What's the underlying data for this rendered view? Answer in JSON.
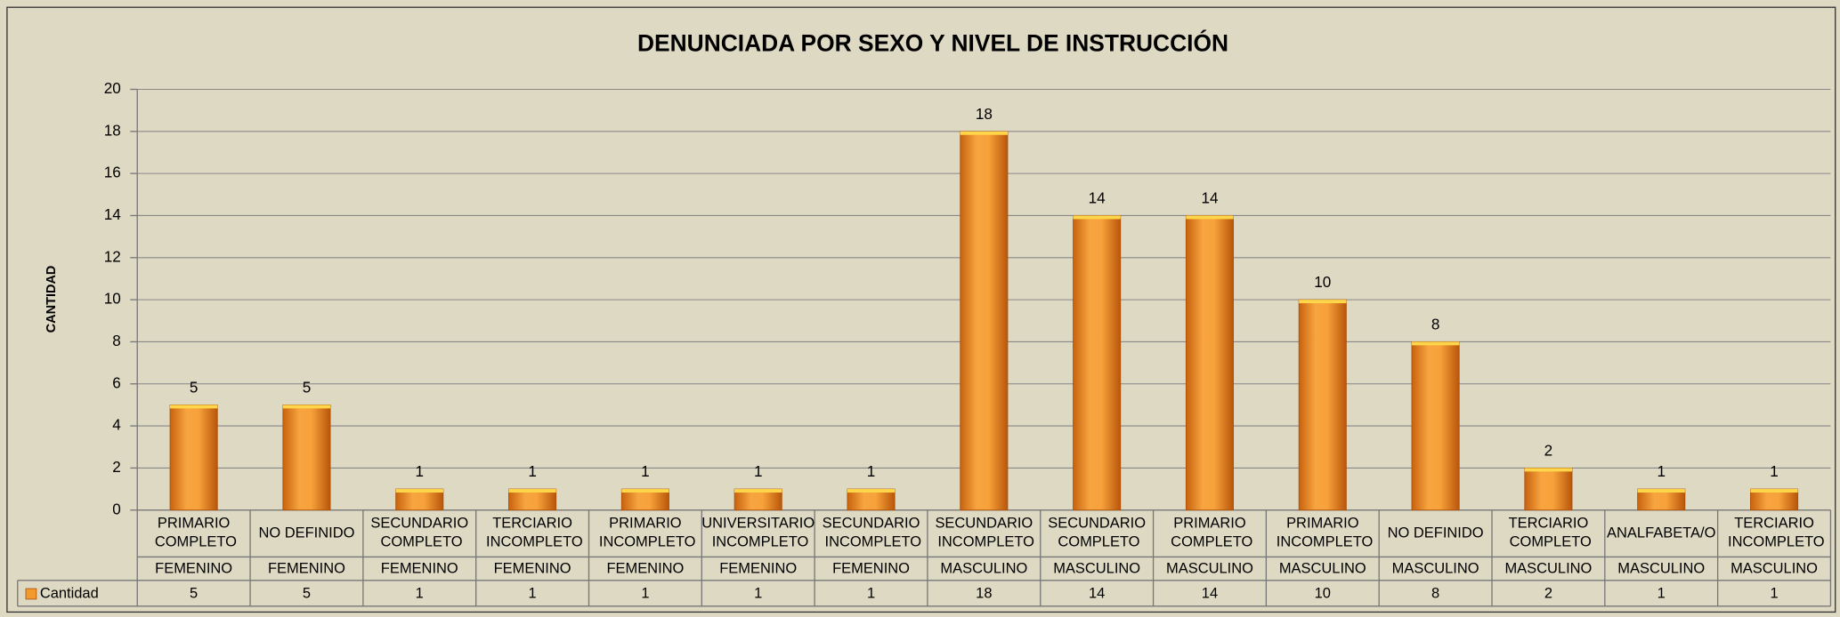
{
  "chart_data": {
    "type": "bar",
    "title": "DENUNCIADA POR SEXO Y NIVEL DE INSTRUCCIÓN",
    "y_label": "CANTIDAD",
    "categories": [
      [
        "PRIMARIO COMPLETO",
        "FEMENINO"
      ],
      [
        "NO DEFINIDO",
        "FEMENINO"
      ],
      [
        "SECUNDARIO COMPLETO",
        "FEMENINO"
      ],
      [
        "TERCIARIO INCOMPLETO",
        "FEMENINO"
      ],
      [
        "PRIMARIO INCOMPLETO",
        "FEMENINO"
      ],
      [
        "UNIVERSITARIO INCOMPLETO",
        "FEMENINO"
      ],
      [
        "SECUNDARIO INCOMPLETO",
        "FEMENINO"
      ],
      [
        "SECUNDARIO INCOMPLETO",
        "MASCULINO"
      ],
      [
        "SECUNDARIO COMPLETO",
        "MASCULINO"
      ],
      [
        "PRIMARIO COMPLETO",
        "MASCULINO"
      ],
      [
        "PRIMARIO INCOMPLETO",
        "MASCULINO"
      ],
      [
        "NO DEFINIDO",
        "MASCULINO"
      ],
      [
        "TERCIARIO COMPLETO",
        "MASCULINO"
      ],
      [
        "ANALFABETA/O",
        "MASCULINO"
      ],
      [
        "TERCIARIO INCOMPLETO",
        "MASCULINO"
      ]
    ],
    "series": [
      {
        "name": "Cantidad",
        "color": "#f29a2e",
        "values": [
          5,
          5,
          1,
          1,
          1,
          1,
          1,
          18,
          14,
          14,
          10,
          8,
          2,
          1,
          1
        ]
      }
    ],
    "ylim": [
      0,
      20
    ],
    "yticks": [
      0,
      2,
      4,
      6,
      8,
      10,
      12,
      14,
      16,
      18,
      20
    ],
    "grid": true,
    "data_table": true
  }
}
